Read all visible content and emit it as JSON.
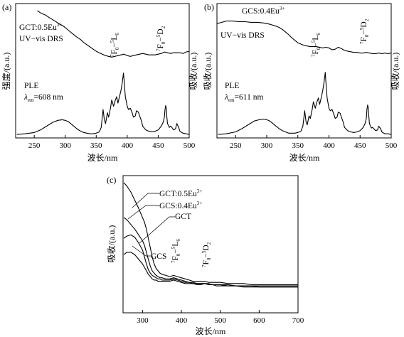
{
  "figure": {
    "panels": [
      {
        "label": "(a)",
        "ylabel_left": "强度/(a.u.)",
        "ylabel_right": "吸收/(a.u.)",
        "xlabel": "波长/nm"
      },
      {
        "label": "(b)",
        "ylabel_left": "吸收/(a.u.)",
        "ylabel_right": "吸收/(a.u.)",
        "xlabel": "波长/nm"
      },
      {
        "label": "(c)",
        "ylabel_left": "吸收/(a.u.)",
        "xlabel": "波长/nm"
      }
    ]
  },
  "annotations": {
    "a_sample": "GCT:0.5Eu",
    "a_sample_sup": "3+",
    "a_drs": "UV−vis DRS",
    "a_ple": "PLE",
    "a_lambda": "λ",
    "a_lambda_sub": "em",
    "a_lambda_val": "=608 nm",
    "b_sample": "GCS:0.4Eu",
    "b_sample_sup": "3+",
    "b_drs": "UV−vis DRS",
    "b_ple": "PLE",
    "b_lambda": "λ",
    "b_lambda_sub": "em",
    "b_lambda_val": "=611 nm",
    "c_gct_eu": "GCT:0.5Eu",
    "c_gct_eu_sup": "3+",
    "c_gcs_eu": "GCS:0.4Eu",
    "c_gcs_eu_sup": "3+",
    "c_gct": "GCT",
    "c_gcs": "GCS",
    "t_7f0": "7",
    "t_f": "F",
    "t_0": "0",
    "t_dash": "−",
    "t_5": "5",
    "t_l": "L",
    "t_6": "6",
    "t_d": "D",
    "t_2": "2"
  },
  "chart_data": [
    {
      "panel": "a",
      "type": "line",
      "xlabel": "波长/nm",
      "ylabel": "强度/(a.u.)",
      "xlim": [
        220,
        500
      ],
      "xticks": [
        250,
        300,
        350,
        400,
        450,
        500
      ],
      "ylim": [
        0,
        100
      ],
      "series": [
        {
          "name": "UV−vis DRS",
          "x": [
            255,
            260,
            268,
            275,
            283,
            290,
            298,
            305,
            312,
            318,
            325,
            330,
            335,
            340,
            345,
            350,
            355,
            360,
            365,
            370,
            375,
            380,
            385,
            390,
            395,
            400,
            405,
            410,
            415,
            420,
            425,
            430,
            435,
            440,
            445,
            450,
            455,
            460,
            465,
            470,
            475,
            480,
            485,
            490,
            495,
            500
          ],
          "y": [
            100,
            97,
            94,
            90,
            86,
            82,
            78,
            73,
            68,
            64,
            60,
            56,
            53,
            50,
            47,
            44,
            42,
            40,
            38,
            37,
            36,
            37,
            38,
            39,
            40,
            38,
            37,
            38,
            39,
            40,
            41,
            40,
            39,
            39,
            39,
            40,
            41,
            43,
            42,
            41,
            42,
            42,
            42,
            41,
            43,
            44
          ]
        },
        {
          "name": "PLE",
          "x": [
            222,
            235,
            250,
            260,
            270,
            280,
            288,
            295,
            300,
            305,
            310,
            315,
            320,
            325,
            330,
            335,
            340,
            345,
            350,
            355,
            358,
            361,
            363,
            365,
            368,
            370,
            373,
            375,
            378,
            380,
            383,
            385,
            388,
            390,
            392,
            393,
            394,
            395,
            397,
            400,
            402,
            405,
            408,
            410,
            413,
            415,
            418,
            420,
            423,
            425,
            430,
            435,
            440,
            445,
            450,
            455,
            458,
            460,
            461,
            462,
            463,
            464,
            465,
            468,
            470,
            472,
            475,
            478,
            480,
            483,
            485,
            488,
            490,
            495,
            500
          ],
          "y": [
            1,
            2,
            4,
            8,
            14,
            20,
            23,
            24,
            23,
            21,
            17,
            13,
            9,
            6,
            4,
            3,
            2,
            2,
            3,
            5,
            12,
            40,
            25,
            18,
            35,
            28,
            42,
            55,
            45,
            52,
            60,
            50,
            62,
            70,
            82,
            90,
            97,
            85,
            60,
            45,
            40,
            42,
            35,
            28,
            30,
            38,
            36,
            30,
            22,
            14,
            8,
            6,
            5,
            6,
            8,
            14,
            20,
            28,
            40,
            46,
            42,
            28,
            18,
            12,
            14,
            12,
            8,
            10,
            18,
            12,
            6,
            4,
            3,
            2,
            1
          ]
        }
      ],
      "peaks": [
        {
          "label": "7F0−5L6",
          "x": 394
        },
        {
          "label": "7F0−5D2",
          "x": 464
        }
      ]
    },
    {
      "panel": "b",
      "type": "line",
      "xlabel": "波长/nm",
      "ylabel": "吸收/(a.u.)",
      "xlim": [
        220,
        500
      ],
      "xticks": [
        250,
        300,
        350,
        400,
        450,
        500
      ],
      "ylim": [
        0,
        100
      ],
      "series": [
        {
          "name": "UV−vis DRS",
          "x": [
            220,
            228,
            235,
            245,
            255,
            265,
            275,
            285,
            295,
            305,
            315,
            320,
            325,
            330,
            335,
            340,
            345,
            350,
            355,
            360,
            365,
            370,
            375,
            380,
            385,
            390,
            395,
            400,
            405,
            410,
            415,
            420,
            425,
            430,
            435,
            440,
            445,
            450,
            455,
            460,
            465,
            470,
            475,
            480,
            485,
            490,
            495,
            500
          ],
          "y": [
            82,
            84,
            86,
            86,
            85,
            85,
            84,
            84,
            83,
            81,
            78,
            76,
            73,
            69,
            65,
            60,
            56,
            52,
            50,
            48,
            47,
            46,
            46,
            46,
            45,
            44,
            45,
            44,
            41,
            42,
            45,
            43,
            40,
            39,
            38,
            37,
            37,
            36,
            36,
            37,
            36,
            35,
            35,
            36,
            35,
            36,
            35,
            36
          ]
        },
        {
          "name": "PLE",
          "x": [
            222,
            235,
            250,
            260,
            270,
            280,
            288,
            295,
            300,
            305,
            310,
            315,
            320,
            325,
            330,
            335,
            340,
            345,
            350,
            355,
            358,
            361,
            363,
            365,
            368,
            370,
            373,
            375,
            378,
            380,
            383,
            385,
            388,
            390,
            392,
            393,
            394,
            395,
            397,
            400,
            402,
            405,
            408,
            410,
            413,
            415,
            418,
            420,
            423,
            425,
            430,
            435,
            440,
            445,
            450,
            455,
            458,
            460,
            461,
            462,
            463,
            464,
            465,
            468,
            470,
            472,
            475,
            478,
            480,
            483,
            485,
            488,
            490,
            495,
            500
          ],
          "y": [
            1,
            2,
            5,
            10,
            16,
            22,
            24,
            25,
            24,
            22,
            18,
            14,
            10,
            7,
            5,
            3,
            3,
            3,
            4,
            6,
            14,
            38,
            22,
            16,
            30,
            26,
            40,
            52,
            42,
            50,
            58,
            48,
            60,
            70,
            82,
            90,
            98,
            84,
            58,
            42,
            38,
            40,
            32,
            26,
            28,
            36,
            34,
            28,
            20,
            12,
            7,
            5,
            4,
            5,
            7,
            12,
            18,
            26,
            40,
            47,
            44,
            30,
            18,
            11,
            12,
            10,
            7,
            8,
            14,
            10,
            5,
            3,
            2,
            2,
            1
          ]
        }
      ],
      "peaks": [
        {
          "label": "7F0−5L6",
          "x": 394
        },
        {
          "label": "7F0−5D2",
          "x": 464
        }
      ]
    },
    {
      "panel": "c",
      "type": "line",
      "xlabel": "波长/nm",
      "ylabel": "吸收/(a.u.)",
      "xlim": [
        250,
        700
      ],
      "xticks": [
        300,
        400,
        500,
        600,
        700
      ],
      "ylim": [
        0,
        100
      ],
      "series": [
        {
          "name": "GCT:0.5Eu3+",
          "x": [
            252,
            260,
            270,
            280,
            290,
            300,
            305,
            310,
            315,
            320,
            325,
            330,
            335,
            340,
            345,
            350,
            360,
            370,
            380,
            390,
            400,
            410,
            420,
            430,
            440,
            450,
            460,
            470,
            480,
            490,
            500,
            520,
            540,
            560,
            580,
            600,
            620,
            640,
            660,
            680,
            700
          ],
          "y": [
            100,
            97,
            92,
            85,
            78,
            70,
            66,
            60,
            52,
            44,
            36,
            30,
            26,
            24,
            22,
            21,
            20,
            19,
            20,
            19,
            18,
            17,
            16,
            15,
            15,
            15,
            15,
            14,
            14,
            14,
            14,
            13,
            13,
            13,
            12,
            12,
            12,
            12,
            12,
            12,
            12
          ]
        },
        {
          "name": "GCS:0.4Eu3+",
          "x": [
            252,
            260,
            270,
            280,
            290,
            300,
            305,
            310,
            315,
            320,
            325,
            330,
            335,
            340,
            345,
            350,
            360,
            370,
            380,
            390,
            400,
            410,
            420,
            430,
            440,
            450,
            460,
            470,
            480,
            490,
            500,
            520,
            540,
            560,
            580,
            600,
            620,
            640,
            660,
            680,
            700
          ],
          "y": [
            70,
            68,
            64,
            60,
            55,
            50,
            46,
            40,
            34,
            28,
            24,
            22,
            20,
            19,
            18,
            18,
            17,
            17,
            18,
            17,
            16,
            15,
            14,
            14,
            13,
            13,
            13,
            12,
            12,
            12,
            12,
            11,
            11,
            11,
            11,
            10,
            10,
            10,
            10,
            10,
            10
          ]
        },
        {
          "name": "GCT",
          "x": [
            252,
            260,
            270,
            280,
            290,
            300,
            305,
            310,
            315,
            320,
            325,
            330,
            335,
            340,
            345,
            350,
            360,
            370,
            380,
            390,
            400,
            410,
            420,
            430,
            440,
            450,
            460,
            470,
            480,
            490,
            500,
            520,
            540,
            560,
            580,
            600,
            620,
            640,
            660,
            680,
            700
          ],
          "y": [
            52,
            54,
            55,
            53,
            48,
            42,
            36,
            30,
            25,
            22,
            20,
            19,
            18,
            17,
            17,
            16,
            16,
            16,
            17,
            16,
            15,
            14,
            14,
            13,
            13,
            13,
            13,
            13,
            12,
            12,
            12,
            12,
            11,
            11,
            11,
            11,
            11,
            11,
            11,
            11,
            11
          ]
        },
        {
          "name": "GCS",
          "x": [
            252,
            260,
            270,
            280,
            290,
            300,
            305,
            310,
            315,
            320,
            325,
            330,
            335,
            340,
            345,
            350,
            360,
            370,
            380,
            390,
            400,
            410,
            420,
            430,
            440,
            450,
            460,
            470,
            480,
            490,
            500,
            520,
            540,
            560,
            580,
            600,
            620,
            640,
            660,
            680,
            700
          ],
          "y": [
            38,
            40,
            40,
            38,
            34,
            30,
            27,
            24,
            21,
            19,
            17,
            16,
            16,
            15,
            15,
            15,
            15,
            15,
            16,
            15,
            14,
            13,
            13,
            13,
            12,
            12,
            13,
            12,
            12,
            11,
            11,
            11,
            11,
            10,
            10,
            10,
            10,
            10,
            10,
            10,
            10
          ]
        }
      ],
      "peaks": [
        {
          "label": "7F0−5L6",
          "x": 394
        },
        {
          "label": "7F0−5D2",
          "x": 465
        }
      ]
    }
  ]
}
